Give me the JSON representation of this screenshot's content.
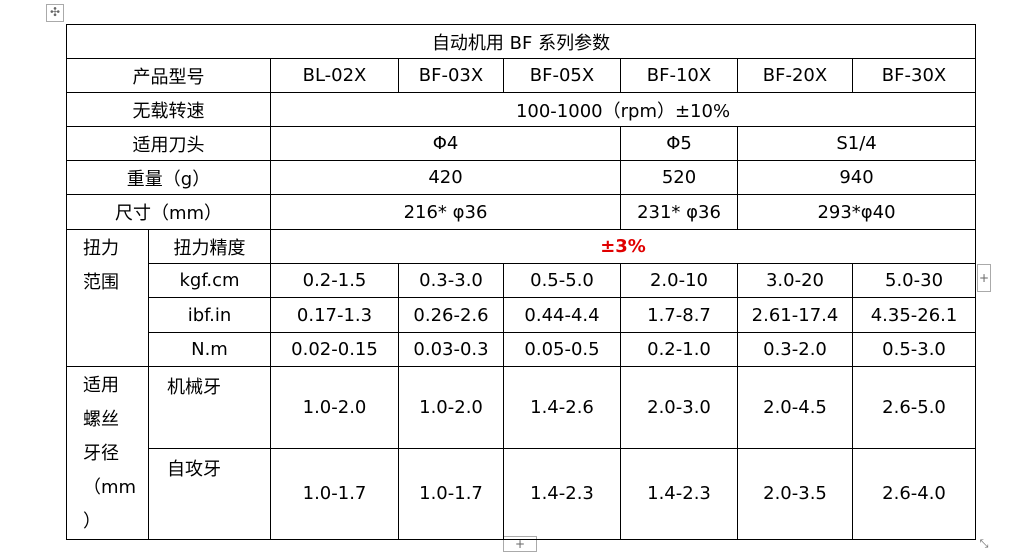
{
  "table": {
    "title": "自动机用 BF 系列参数",
    "model_row": {
      "label": "产品型号",
      "models": [
        "BL-02X",
        "BF-03X",
        "BF-05X",
        "BF-10X",
        "BF-20X",
        "BF-30X"
      ]
    },
    "speed": {
      "label": "无载转速",
      "value": "100-1000（rpm）±10%"
    },
    "bit": {
      "label": "适用刀头",
      "values": [
        "Φ4",
        "Φ5",
        "S1/4"
      ]
    },
    "weight": {
      "label": "重量（g）",
      "values": [
        "420",
        "520",
        "940"
      ]
    },
    "size": {
      "label": "尺寸（mm）",
      "values": [
        "216* φ36",
        "231* φ36",
        "293*φ40"
      ]
    },
    "torque": {
      "label_lines": [
        "扭力",
        "范围"
      ],
      "precision_label": "扭力精度",
      "precision": "±3%",
      "units": [
        {
          "unit": "kgf.cm",
          "values": [
            "0.2-1.5",
            "0.3-3.0",
            "0.5-5.0",
            "2.0-10",
            "3.0-20",
            "5.0-30"
          ]
        },
        {
          "unit": "ibf.in",
          "values": [
            "0.17-1.3",
            "0.26-2.6",
            "0.44-4.4",
            "1.7-8.7",
            "2.61-17.4",
            "4.35-26.1"
          ]
        },
        {
          "unit": "N.m",
          "values": [
            "0.02-0.15",
            "0.03-0.3",
            "0.05-0.5",
            "0.2-1.0",
            "0.3-2.0",
            "0.5-3.0"
          ]
        }
      ]
    },
    "thread": {
      "label_lines": [
        "适用",
        "螺丝",
        "牙径",
        "（mm",
        "）"
      ],
      "types": [
        {
          "name": "机械牙",
          "values": [
            "1.0-2.0",
            "1.0-2.0",
            "1.4-2.6",
            "2.0-3.0",
            "2.0-4.5",
            "2.6-5.0"
          ]
        },
        {
          "name": "自攻牙",
          "values": [
            "1.0-1.7",
            "1.0-1.7",
            "1.4-2.3",
            "1.4-2.3",
            "2.0-3.5",
            "2.6-4.0"
          ]
        }
      ]
    }
  }
}
